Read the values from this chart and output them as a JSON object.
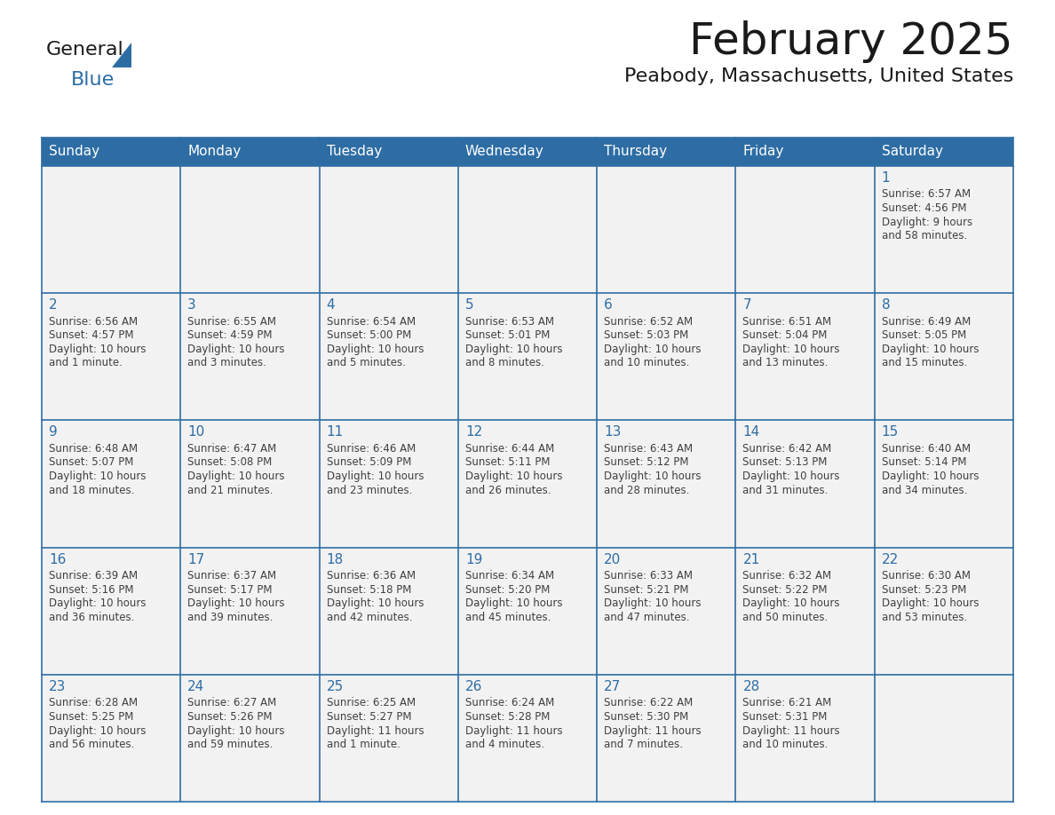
{
  "title": "February 2025",
  "subtitle": "Peabody, Massachusetts, United States",
  "header_bg": "#2E6DA4",
  "header_text_color": "#FFFFFF",
  "cell_bg": "#F2F2F2",
  "border_color": "#2E6DA4",
  "day_number_color": "#2E6DA4",
  "text_color": "#404040",
  "days_of_week": [
    "Sunday",
    "Monday",
    "Tuesday",
    "Wednesday",
    "Thursday",
    "Friday",
    "Saturday"
  ],
  "weeks": [
    [
      {
        "day": null,
        "sunrise": null,
        "sunset": null,
        "daylight": null
      },
      {
        "day": null,
        "sunrise": null,
        "sunset": null,
        "daylight": null
      },
      {
        "day": null,
        "sunrise": null,
        "sunset": null,
        "daylight": null
      },
      {
        "day": null,
        "sunrise": null,
        "sunset": null,
        "daylight": null
      },
      {
        "day": null,
        "sunrise": null,
        "sunset": null,
        "daylight": null
      },
      {
        "day": null,
        "sunrise": null,
        "sunset": null,
        "daylight": null
      },
      {
        "day": 1,
        "sunrise": "6:57 AM",
        "sunset": "4:56 PM",
        "daylight": "9 hours\nand 58 minutes."
      }
    ],
    [
      {
        "day": 2,
        "sunrise": "6:56 AM",
        "sunset": "4:57 PM",
        "daylight": "10 hours\nand 1 minute."
      },
      {
        "day": 3,
        "sunrise": "6:55 AM",
        "sunset": "4:59 PM",
        "daylight": "10 hours\nand 3 minutes."
      },
      {
        "day": 4,
        "sunrise": "6:54 AM",
        "sunset": "5:00 PM",
        "daylight": "10 hours\nand 5 minutes."
      },
      {
        "day": 5,
        "sunrise": "6:53 AM",
        "sunset": "5:01 PM",
        "daylight": "10 hours\nand 8 minutes."
      },
      {
        "day": 6,
        "sunrise": "6:52 AM",
        "sunset": "5:03 PM",
        "daylight": "10 hours\nand 10 minutes."
      },
      {
        "day": 7,
        "sunrise": "6:51 AM",
        "sunset": "5:04 PM",
        "daylight": "10 hours\nand 13 minutes."
      },
      {
        "day": 8,
        "sunrise": "6:49 AM",
        "sunset": "5:05 PM",
        "daylight": "10 hours\nand 15 minutes."
      }
    ],
    [
      {
        "day": 9,
        "sunrise": "6:48 AM",
        "sunset": "5:07 PM",
        "daylight": "10 hours\nand 18 minutes."
      },
      {
        "day": 10,
        "sunrise": "6:47 AM",
        "sunset": "5:08 PM",
        "daylight": "10 hours\nand 21 minutes."
      },
      {
        "day": 11,
        "sunrise": "6:46 AM",
        "sunset": "5:09 PM",
        "daylight": "10 hours\nand 23 minutes."
      },
      {
        "day": 12,
        "sunrise": "6:44 AM",
        "sunset": "5:11 PM",
        "daylight": "10 hours\nand 26 minutes."
      },
      {
        "day": 13,
        "sunrise": "6:43 AM",
        "sunset": "5:12 PM",
        "daylight": "10 hours\nand 28 minutes."
      },
      {
        "day": 14,
        "sunrise": "6:42 AM",
        "sunset": "5:13 PM",
        "daylight": "10 hours\nand 31 minutes."
      },
      {
        "day": 15,
        "sunrise": "6:40 AM",
        "sunset": "5:14 PM",
        "daylight": "10 hours\nand 34 minutes."
      }
    ],
    [
      {
        "day": 16,
        "sunrise": "6:39 AM",
        "sunset": "5:16 PM",
        "daylight": "10 hours\nand 36 minutes."
      },
      {
        "day": 17,
        "sunrise": "6:37 AM",
        "sunset": "5:17 PM",
        "daylight": "10 hours\nand 39 minutes."
      },
      {
        "day": 18,
        "sunrise": "6:36 AM",
        "sunset": "5:18 PM",
        "daylight": "10 hours\nand 42 minutes."
      },
      {
        "day": 19,
        "sunrise": "6:34 AM",
        "sunset": "5:20 PM",
        "daylight": "10 hours\nand 45 minutes."
      },
      {
        "day": 20,
        "sunrise": "6:33 AM",
        "sunset": "5:21 PM",
        "daylight": "10 hours\nand 47 minutes."
      },
      {
        "day": 21,
        "sunrise": "6:32 AM",
        "sunset": "5:22 PM",
        "daylight": "10 hours\nand 50 minutes."
      },
      {
        "day": 22,
        "sunrise": "6:30 AM",
        "sunset": "5:23 PM",
        "daylight": "10 hours\nand 53 minutes."
      }
    ],
    [
      {
        "day": 23,
        "sunrise": "6:28 AM",
        "sunset": "5:25 PM",
        "daylight": "10 hours\nand 56 minutes."
      },
      {
        "day": 24,
        "sunrise": "6:27 AM",
        "sunset": "5:26 PM",
        "daylight": "10 hours\nand 59 minutes."
      },
      {
        "day": 25,
        "sunrise": "6:25 AM",
        "sunset": "5:27 PM",
        "daylight": "11 hours\nand 1 minute."
      },
      {
        "day": 26,
        "sunrise": "6:24 AM",
        "sunset": "5:28 PM",
        "daylight": "11 hours\nand 4 minutes."
      },
      {
        "day": 27,
        "sunrise": "6:22 AM",
        "sunset": "5:30 PM",
        "daylight": "11 hours\nand 7 minutes."
      },
      {
        "day": 28,
        "sunrise": "6:21 AM",
        "sunset": "5:31 PM",
        "daylight": "11 hours\nand 10 minutes."
      },
      {
        "day": null,
        "sunrise": null,
        "sunset": null,
        "daylight": null
      }
    ]
  ],
  "logo_text1": "General",
  "logo_text2": "Blue",
  "logo_text1_color": "#1a1a1a",
  "logo_text2_color": "#2E6DA4",
  "logo_triangle_color": "#2E6DA4",
  "title_fontsize": 36,
  "subtitle_fontsize": 16,
  "header_fontsize": 11,
  "day_num_fontsize": 11,
  "cell_text_fontsize": 8.5
}
